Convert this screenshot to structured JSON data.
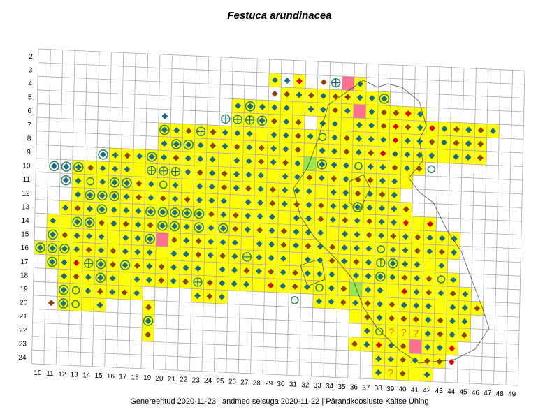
{
  "title": "Festuca arundinacea",
  "footer": "Genereeritud 2020-11-23  |  andmed seisuga 2020-11-22  |  Pärandkoosluste Kaitse Ühing",
  "grid": {
    "rows": [
      "2",
      "3",
      "4",
      "5",
      "6",
      "7",
      "8",
      "9",
      "10",
      "11",
      "12",
      "13",
      "14",
      "15",
      "16",
      "17",
      "18",
      "19",
      "20",
      "21",
      "22",
      "23",
      "24"
    ],
    "cols": [
      "10",
      "11",
      "12",
      "13",
      "14",
      "15",
      "16",
      "17",
      "18",
      "19",
      "20",
      "21",
      "22",
      "23",
      "24",
      "25",
      "26",
      "27",
      "28",
      "29",
      "30",
      "31",
      "32",
      "33",
      "34",
      "35",
      "36",
      "37",
      "38",
      "39",
      "40",
      "41",
      "42",
      "43",
      "44",
      "45",
      "46",
      "47",
      "48",
      "49"
    ]
  },
  "colors": {
    "occupied": "#ffff00",
    "pink": "#ff6f91",
    "green": "#99e64d",
    "teal": "#1a6b8a",
    "brown": "#8b4513",
    "red": "#e00000",
    "yellow_green": "#9acd32"
  },
  "legend_symbols": [
    "teal-diamond",
    "brown-diamond",
    "red-diamond",
    "ring-diamond",
    "circle",
    "crosshair-circle",
    "question-mark"
  ],
  "question_mark": "?",
  "cells": [
    [
      3,
      "35",
      "pink"
    ],
    [
      3,
      "31",
      "red"
    ],
    [
      3,
      "30",
      "teal"
    ],
    [
      3,
      "33",
      "brown"
    ],
    [
      3,
      "34",
      "crosshair"
    ],
    [
      4,
      "35",
      "brown"
    ],
    [
      4,
      "29",
      "brown"
    ],
    [
      4,
      "33",
      "teal"
    ],
    [
      4,
      "38",
      "ring"
    ],
    [
      5,
      "36",
      "pink"
    ],
    [
      5,
      "27",
      "ring"
    ],
    [
      5,
      "28",
      "teal"
    ],
    [
      5,
      "39",
      "brown"
    ],
    [
      5,
      "40",
      "red"
    ],
    [
      6,
      "25",
      "crosshair"
    ],
    [
      6,
      "26",
      "crosshair"
    ],
    [
      6,
      "27",
      "crosshair"
    ],
    [
      6,
      "28",
      "ring"
    ],
    [
      6,
      "20",
      "teal"
    ],
    [
      6,
      "39",
      "red"
    ],
    [
      6,
      "42",
      "red"
    ],
    [
      6,
      "44",
      "brown"
    ],
    [
      6,
      "46",
      "brown"
    ],
    [
      7,
      "20",
      "ring"
    ],
    [
      7,
      "23",
      "crosshair"
    ],
    [
      7,
      "33",
      "circle"
    ],
    [
      7,
      "37",
      "teal"
    ],
    [
      7,
      "38",
      "teal"
    ],
    [
      7,
      "39",
      "red"
    ],
    [
      8,
      "31",
      "brown"
    ],
    [
      8,
      "33",
      "teal"
    ],
    [
      8,
      "38",
      "red"
    ],
    [
      8,
      "39",
      "teal"
    ],
    [
      8,
      "21",
      "ring"
    ],
    [
      8,
      "22",
      "ring"
    ],
    [
      9,
      "15",
      "ring"
    ],
    [
      9,
      "19",
      "ring"
    ],
    [
      9,
      "32",
      "green"
    ],
    [
      9,
      "33",
      "ring"
    ],
    [
      9,
      "36",
      "circle"
    ],
    [
      9,
      "42",
      "circle"
    ],
    [
      10,
      "11",
      "ring"
    ],
    [
      10,
      "12",
      "ring"
    ],
    [
      10,
      "13",
      "ring"
    ],
    [
      10,
      "19",
      "crosshair"
    ],
    [
      10,
      "20",
      "crosshair"
    ],
    [
      10,
      "21",
      "crosshair"
    ],
    [
      10,
      "37",
      "brown"
    ],
    [
      11,
      "12",
      "ring"
    ],
    [
      11,
      "14",
      "circle"
    ],
    [
      11,
      "16",
      "ring"
    ],
    [
      11,
      "17",
      "ring"
    ],
    [
      11,
      "20",
      "circle"
    ],
    [
      12,
      "14",
      "ring"
    ],
    [
      12,
      "15",
      "ring"
    ],
    [
      12,
      "16",
      "ring"
    ],
    [
      12,
      "36",
      "ring"
    ],
    [
      12,
      "37",
      "teal"
    ],
    [
      12,
      "40",
      "brown"
    ],
    [
      13,
      "15",
      "ring"
    ],
    [
      13,
      "19",
      "ring"
    ],
    [
      13,
      "20",
      "ring"
    ],
    [
      13,
      "21",
      "ring"
    ],
    [
      13,
      "22",
      "ring"
    ],
    [
      13,
      "23",
      "ring"
    ],
    [
      13,
      "40",
      "red"
    ],
    [
      13,
      "42",
      "red"
    ],
    [
      14,
      "13",
      "ring"
    ],
    [
      14,
      "14",
      "ring"
    ],
    [
      14,
      "20",
      "ring"
    ],
    [
      14,
      "21",
      "ring"
    ],
    [
      14,
      "23",
      "ring"
    ],
    [
      14,
      "25",
      "ring"
    ],
    [
      15,
      "20",
      "pink"
    ],
    [
      15,
      "19",
      "ring"
    ],
    [
      15,
      "11",
      "ring"
    ],
    [
      15,
      "38",
      "circle"
    ],
    [
      16,
      "10",
      "ring"
    ],
    [
      16,
      "11",
      "ring"
    ],
    [
      16,
      "12",
      "ring"
    ],
    [
      16,
      "27",
      "crosshair"
    ],
    [
      16,
      "38",
      "crosshair"
    ],
    [
      16,
      "39",
      "ring"
    ],
    [
      17,
      "11",
      "ring"
    ],
    [
      17,
      "14",
      "crosshair"
    ],
    [
      17,
      "15",
      "ring"
    ],
    [
      17,
      "17",
      "ring"
    ],
    [
      17,
      "13",
      "red"
    ],
    [
      17,
      "38",
      "ring"
    ],
    [
      17,
      "43",
      "circle"
    ],
    [
      18,
      "15",
      "ring"
    ],
    [
      18,
      "23",
      "crosshair"
    ],
    [
      18,
      "36",
      "green"
    ],
    [
      18,
      "29",
      "red"
    ],
    [
      18,
      "33",
      "circle"
    ],
    [
      18,
      "40",
      "red"
    ],
    [
      19,
      "12",
      "ring"
    ],
    [
      19,
      "13",
      "circle"
    ],
    [
      19,
      "24",
      "brown"
    ],
    [
      19,
      "31",
      "circle"
    ],
    [
      20,
      "11",
      "brown"
    ],
    [
      20,
      "12",
      "ring"
    ],
    [
      20,
      "13",
      "circle"
    ],
    [
      20,
      "37",
      "brown"
    ],
    [
      20,
      "40",
      "brown"
    ],
    [
      21,
      "19",
      "ring"
    ],
    [
      21,
      "39",
      "q"
    ],
    [
      21,
      "40",
      "q"
    ],
    [
      21,
      "41",
      "q"
    ],
    [
      21,
      "38",
      "circle"
    ],
    [
      22,
      "19",
      "brown"
    ],
    [
      22,
      "41",
      "pink"
    ],
    [
      22,
      "38",
      "red"
    ],
    [
      22,
      "44",
      "red"
    ],
    [
      23,
      "43",
      "brown"
    ],
    [
      23,
      "44",
      "red"
    ],
    [
      24,
      "39",
      "q"
    ],
    [
      24,
      "40",
      "brown"
    ]
  ]
}
